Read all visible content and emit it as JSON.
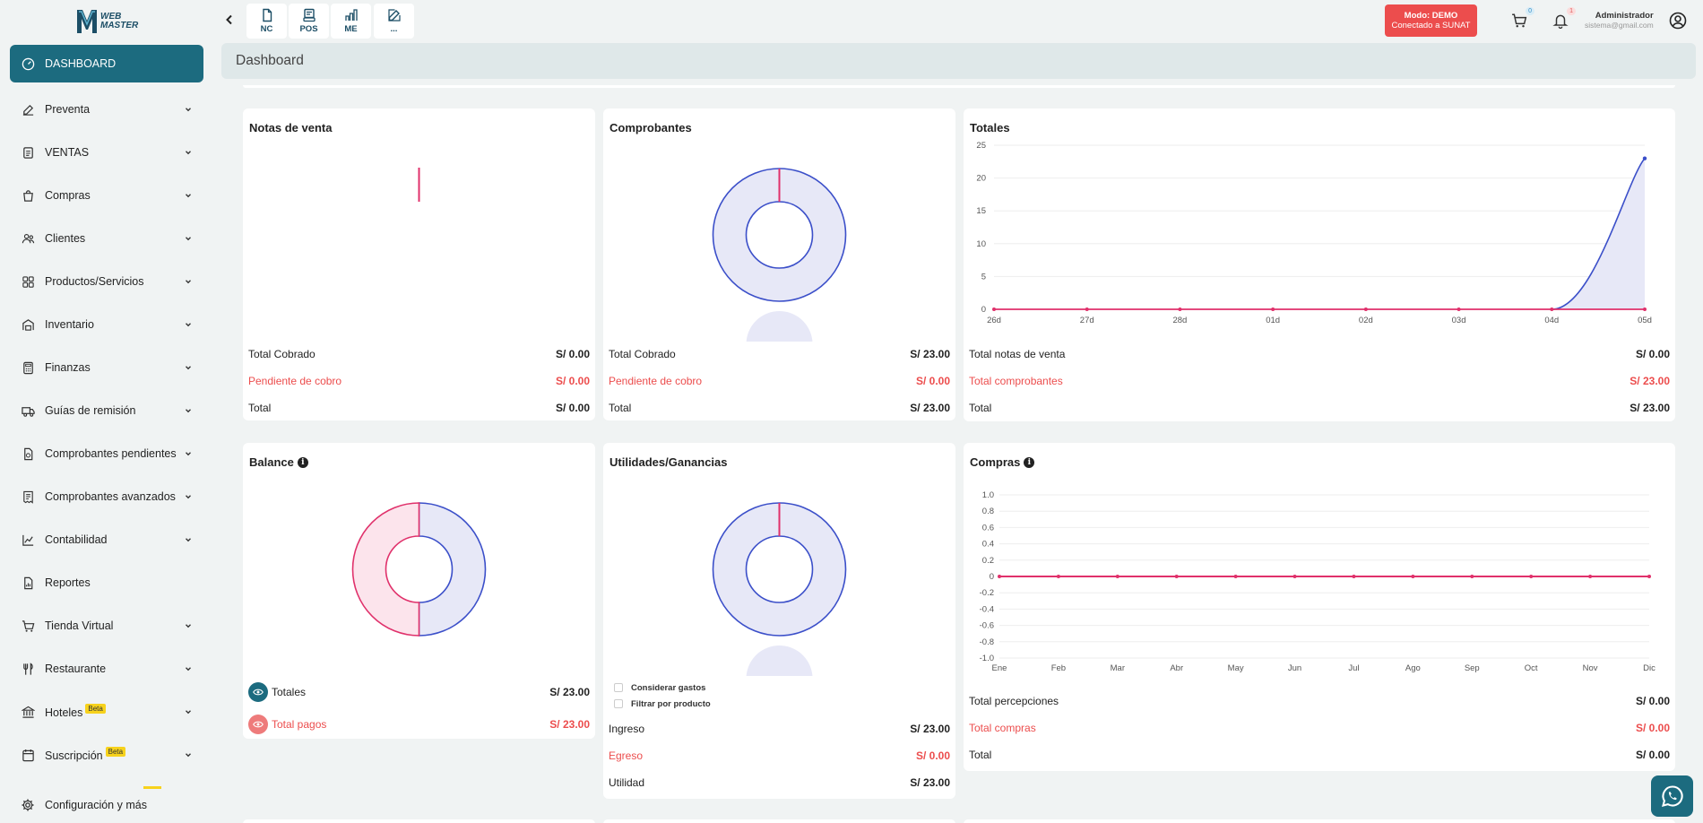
{
  "app": {
    "logo": {
      "line1": "WEB",
      "line2": "MASTER"
    }
  },
  "sidebar": {
    "items": [
      {
        "label": "DASHBOARD",
        "icon": "dashboard-icon",
        "active": true,
        "chevron": false
      },
      {
        "label": "Preventa",
        "icon": "edit-icon",
        "chevron": true
      },
      {
        "label": "VENTAS",
        "icon": "document-icon",
        "chevron": true
      },
      {
        "label": "Compras",
        "icon": "shopping-bag-icon",
        "chevron": true
      },
      {
        "label": "Clientes",
        "icon": "users-icon",
        "chevron": true
      },
      {
        "label": "Productos/Servicios",
        "icon": "grid-icon",
        "chevron": true
      },
      {
        "label": "Inventario",
        "icon": "warehouse-icon",
        "chevron": true
      },
      {
        "label": "Finanzas",
        "icon": "calculator-icon",
        "chevron": true
      },
      {
        "label": "Guías de remisión",
        "icon": "truck-icon",
        "chevron": true
      },
      {
        "label": "Comprobantes pendientes",
        "icon": "pending-document-icon",
        "chevron": true
      },
      {
        "label": "Comprobantes avanzados",
        "icon": "receipt-icon",
        "chevron": true
      },
      {
        "label": "Contabilidad",
        "icon": "chart-icon",
        "chevron": true
      },
      {
        "label": "Reportes",
        "icon": "report-icon",
        "chevron": false
      },
      {
        "label": "Tienda Virtual",
        "icon": "cart-icon",
        "chevron": true
      },
      {
        "label": "Restaurante",
        "icon": "utensils-icon",
        "chevron": true
      },
      {
        "label": "Hoteles",
        "icon": "bank-icon",
        "chevron": true,
        "badge": "Beta"
      },
      {
        "label": "Suscripción",
        "icon": "subscription-icon",
        "chevron": true,
        "badge": "Beta"
      }
    ],
    "config_label": "Configuración y más"
  },
  "topbar": {
    "quick": [
      {
        "label": "NC",
        "icon": "note-icon"
      },
      {
        "label": "POS",
        "icon": "pos-icon"
      },
      {
        "label": "ME",
        "icon": "me-icon"
      },
      {
        "label": "...",
        "icon": "edit-icon"
      }
    ],
    "mode_line1": "Modo: DEMO",
    "mode_line2": "Conectado a SUNAT",
    "cart_count": "0",
    "bell_count": "1",
    "user_name": "Administrador",
    "user_email": "sistema@gmail.com"
  },
  "breadcrumb": "Dashboard",
  "cards": {
    "notas": {
      "title": "Notas de venta",
      "rows": [
        {
          "label": "Total Cobrado",
          "value": "S/ 0.00"
        },
        {
          "label": "Pendiente de cobro",
          "value": "S/ 0.00"
        },
        {
          "label": "Total",
          "value": "S/ 0.00"
        }
      ]
    },
    "comprobantes": {
      "title": "Comprobantes",
      "rows": [
        {
          "label": "Total Cobrado",
          "value": "S/ 23.00"
        },
        {
          "label": "Pendiente de cobro",
          "value": "S/ 0.00"
        },
        {
          "label": "Total",
          "value": "S/ 23.00"
        }
      ]
    },
    "totales": {
      "title": "Totales",
      "rows": [
        {
          "label": "Total notas de venta",
          "value": "S/ 0.00"
        },
        {
          "label": "Total comprobantes",
          "value": "S/ 23.00"
        },
        {
          "label": "Total",
          "value": "S/ 23.00"
        }
      ]
    },
    "balance": {
      "title": "Balance",
      "rows": [
        {
          "label": "Totales",
          "value": "S/ 23.00"
        },
        {
          "label": "Total pagos",
          "value": "S/ 23.00"
        }
      ]
    },
    "utilidades": {
      "title": "Utilidades/Ganancias",
      "checks": [
        "Considerar gastos",
        "Filtrar por producto"
      ],
      "rows": [
        {
          "label": "Ingreso",
          "value": "S/ 23.00"
        },
        {
          "label": "Egreso",
          "value": "S/ 0.00"
        },
        {
          "label": "Utilidad",
          "value": "S/ 23.00"
        }
      ]
    },
    "compras": {
      "title": "Compras",
      "rows": [
        {
          "label": "Total percepciones",
          "value": "S/ 0.00"
        },
        {
          "label": "Total compras",
          "value": "S/ 0.00"
        },
        {
          "label": "Total",
          "value": "S/ 0.00"
        }
      ]
    }
  },
  "chart_data": [
    {
      "type": "pie",
      "title": "Notas de venta",
      "slices": [
        {
          "value": 0,
          "color": "#e0316b"
        }
      ]
    },
    {
      "type": "pie",
      "title": "Comprobantes",
      "slices": [
        {
          "value": 0,
          "color": "#e0316b"
        },
        {
          "value": 23,
          "color": "#3b4fc9"
        }
      ]
    },
    {
      "type": "area",
      "title": "Totales",
      "categories": [
        "26d",
        "27d",
        "28d",
        "01d",
        "02d",
        "03d",
        "04d",
        "05d"
      ],
      "series": [
        {
          "values": [
            0,
            0,
            0,
            0,
            0,
            0,
            0,
            23
          ],
          "color": "#3b4fc9",
          "fill": "#e7e8f7"
        },
        {
          "values": [
            0,
            0,
            0,
            0,
            0,
            0,
            0,
            0
          ],
          "color": "#e0316b"
        }
      ],
      "yticks": [
        0,
        5,
        10,
        15,
        20,
        25
      ],
      "ylim": [
        0,
        25
      ]
    },
    {
      "type": "pie",
      "title": "Balance",
      "slices": [
        {
          "value": 23,
          "color": "#3b4fc9"
        },
        {
          "value": 23,
          "color": "#e0316b"
        }
      ]
    },
    {
      "type": "pie",
      "title": "Utilidades/Ganancias",
      "slices": [
        {
          "value": 0,
          "color": "#e0316b"
        },
        {
          "value": 23,
          "color": "#3b4fc9"
        }
      ]
    },
    {
      "type": "line",
      "title": "Compras",
      "categories": [
        "Ene",
        "Feb",
        "Mar",
        "Abr",
        "May",
        "Jun",
        "Jul",
        "Ago",
        "Sep",
        "Oct",
        "Nov",
        "Dic"
      ],
      "series": [
        {
          "values": [
            0,
            0,
            0,
            0,
            0,
            0,
            0,
            0,
            0,
            0,
            0,
            0
          ],
          "color": "#3b4fc9"
        },
        {
          "values": [
            0,
            0,
            0,
            0,
            0,
            0,
            0,
            0,
            0,
            0,
            0,
            0
          ],
          "color": "#e0316b"
        }
      ],
      "yticks": [
        "1.0",
        "0.8",
        "0.6",
        "0.4",
        "0.2",
        "0",
        "-0.2",
        "-0.4",
        "-0.6",
        "-0.8",
        "-1.0"
      ],
      "ylim": [
        -1,
        1
      ]
    }
  ]
}
